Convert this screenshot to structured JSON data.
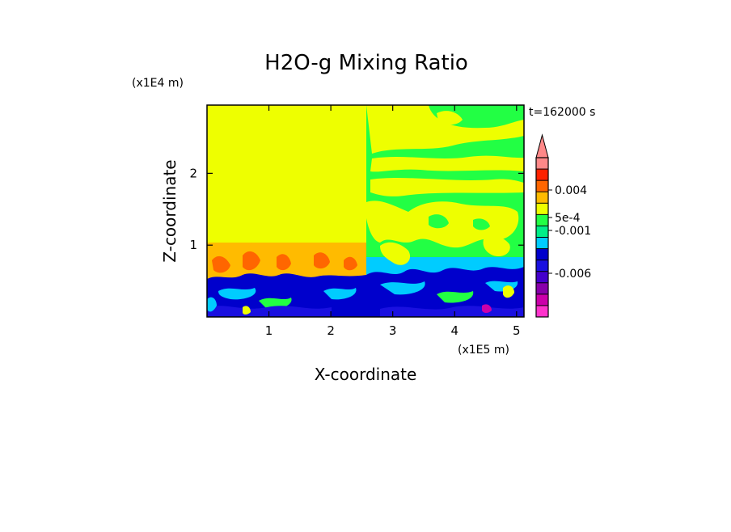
{
  "chart_data": {
    "type": "heatmap",
    "title": "H2O-g Mixing Ratio",
    "xlabel": "X-coordinate",
    "ylabel": "Z-coordinate",
    "x_unit": "(x1E5 m)",
    "y_unit": "(x1E4 m)",
    "time_label": "t=162000 s",
    "xlim": [
      0,
      5.12
    ],
    "ylim": [
      0,
      2.95
    ],
    "x_ticks": [
      1,
      2,
      3,
      4,
      5
    ],
    "y_ticks": [
      1,
      2
    ],
    "grid": false,
    "legend": "right",
    "colorbar": {
      "extend": "max",
      "tick_labels": [
        "0.004",
        "5e-4",
        "-0.001",
        "-0.006"
      ],
      "tick_values": [
        0.004,
        0.0005,
        -0.001,
        -0.006
      ],
      "colors": [
        "#ff33cc",
        "#cc00aa",
        "#8800aa",
        "#4400cc",
        "#1a10e0",
        "#0000cc",
        "#00ccff",
        "#00ee88",
        "#22ff44",
        "#eeff00",
        "#ffbb00",
        "#ff6600",
        "#ff2200",
        "#ff8888"
      ]
    },
    "regions": [
      {
        "name": "upper-left",
        "x": [
          0,
          2.55
        ],
        "z": [
          1.0,
          2.95
        ],
        "color": "#eeff00"
      },
      {
        "name": "upper-right",
        "x": [
          2.55,
          5.12
        ],
        "z": [
          0.8,
          2.95
        ],
        "color": "#22ff44"
      },
      {
        "name": "lower-layer",
        "x": [
          0,
          5.12
        ],
        "z": [
          0,
          0.6
        ],
        "color": "#0000cc"
      },
      {
        "name": "mid-left",
        "x": [
          0,
          2.55
        ],
        "z": [
          0.6,
          1.0
        ],
        "color": "#ffbb00"
      },
      {
        "name": "mid-right",
        "x": [
          2.55,
          5.12
        ],
        "z": [
          0.5,
          0.8
        ],
        "color": "#00ccff"
      }
    ]
  }
}
